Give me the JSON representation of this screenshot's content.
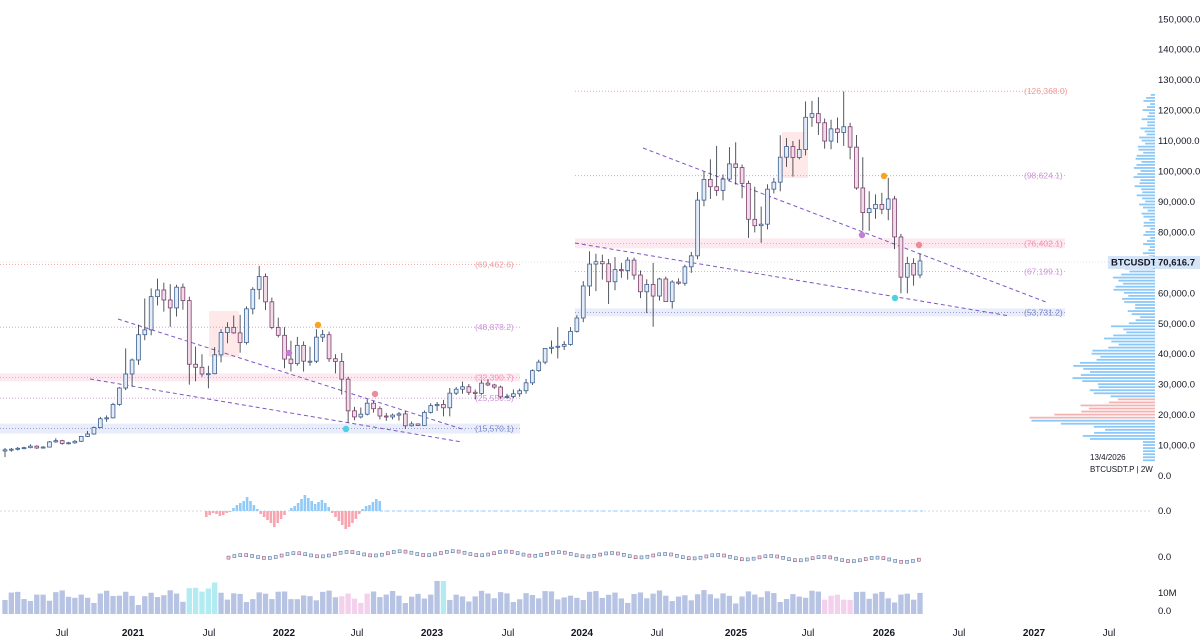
{
  "chart_data": {
    "type": "candlestick",
    "symbol": "BTCUSDT.P",
    "interval": "2W",
    "last_price": "70,616.7",
    "date_label": "13/4/2026",
    "symbol_interval_label": "BTCUSDT.P | 2W",
    "y_ticks": [
      "150,000.0",
      "140,000.0",
      "130,000.0",
      "120,000.0",
      "110,000.0",
      "100,000.0",
      "90,000.0",
      "80,000.0",
      "70,000.0",
      "60,000.0",
      "50,000.0",
      "40,000.0",
      "30,000.0",
      "20,000.0",
      "10,000.0",
      "0.0"
    ],
    "x_ticks": [
      {
        "label": "Jul",
        "year": false
      },
      {
        "label": "2021",
        "year": true
      },
      {
        "label": "Jul",
        "year": false
      },
      {
        "label": "2022",
        "year": true
      },
      {
        "label": "Jul",
        "year": false
      },
      {
        "label": "2023",
        "year": true
      },
      {
        "label": "Jul",
        "year": false
      },
      {
        "label": "2024",
        "year": true
      },
      {
        "label": "Jul",
        "year": false
      },
      {
        "label": "2025",
        "year": true
      },
      {
        "label": "Jul",
        "year": false
      },
      {
        "label": "2026",
        "year": true
      },
      {
        "label": "Jul",
        "year": false
      },
      {
        "label": "2027",
        "year": true
      },
      {
        "label": "Jul",
        "year": false
      }
    ],
    "levels": [
      {
        "label": "(126,368.0)",
        "value": 126368,
        "color": "#ef9a9a"
      },
      {
        "label": "(98,624.1)",
        "value": 98624,
        "color": "#ce93d8"
      },
      {
        "label": "(76,402.1)",
        "value": 76402,
        "color": "#f48fb1"
      },
      {
        "label": "(69,462.6)",
        "value": 69462,
        "color": "#ef9a9a"
      },
      {
        "label": "(67,199.1)",
        "value": 67199,
        "color": "#ce93d8"
      },
      {
        "label": "(53,731.2)",
        "value": 53731,
        "color": "#7986cb"
      },
      {
        "label": "(48,878.2)",
        "value": 48878,
        "color": "#ce93d8"
      },
      {
        "label": "(32,390.7)",
        "value": 32390,
        "color": "#f48fb1"
      },
      {
        "label": "(25,550.5)",
        "value": 25550,
        "color": "#ce93d8"
      },
      {
        "label": "(15,570.1)",
        "value": 15570,
        "color": "#7986cb"
      }
    ],
    "oscillator_labels": [
      "0.0",
      "0.0"
    ],
    "volume_labels": [
      "10M",
      "0.0"
    ],
    "candles": [
      [
        8200,
        9200,
        6200,
        8600
      ],
      [
        8600,
        9200,
        8000,
        8800
      ],
      [
        8800,
        9500,
        8400,
        9100
      ],
      [
        9100,
        9600,
        8800,
        9300
      ],
      [
        9300,
        10400,
        9100,
        9800
      ],
      [
        9800,
        10100,
        8900,
        9200
      ],
      [
        9200,
        9800,
        9000,
        9500
      ],
      [
        9500,
        11500,
        9400,
        11200
      ],
      [
        11200,
        12400,
        10900,
        11600
      ],
      [
        11600,
        11900,
        10300,
        10700
      ],
      [
        10700,
        11200,
        10400,
        10900
      ],
      [
        10900,
        11800,
        10600,
        11400
      ],
      [
        11400,
        13200,
        11200,
        13000
      ],
      [
        13000,
        14800,
        12800,
        13800
      ],
      [
        13800,
        16200,
        13600,
        15900
      ],
      [
        15900,
        19400,
        15700,
        18800
      ],
      [
        18800,
        19900,
        17800,
        19100
      ],
      [
        19100,
        24000,
        18900,
        23500
      ],
      [
        23500,
        29200,
        23100,
        28900
      ],
      [
        28900,
        41900,
        28200,
        33500
      ],
      [
        33500,
        38600,
        29400,
        38100
      ],
      [
        38100,
        49700,
        36500,
        46400
      ],
      [
        46400,
        58300,
        44600,
        48000
      ],
      [
        48000,
        61600,
        46200,
        58900
      ],
      [
        58900,
        64800,
        56000,
        61100
      ],
      [
        61100,
        63500,
        54000,
        57800
      ],
      [
        57800,
        63000,
        49000,
        55200
      ],
      [
        55200,
        62800,
        52400,
        62000
      ],
      [
        62000,
        63200,
        54600,
        57600
      ],
      [
        57600,
        58900,
        30000,
        36700
      ],
      [
        36700,
        42500,
        31100,
        35700
      ],
      [
        35700,
        40000,
        32600,
        33500
      ],
      [
        33500,
        36200,
        28800,
        33600
      ],
      [
        33600,
        42300,
        33400,
        39800
      ],
      [
        39800,
        48200,
        37300,
        47100
      ],
      [
        47100,
        50500,
        43600,
        48800
      ],
      [
        48800,
        52700,
        46700,
        47000
      ],
      [
        47000,
        52900,
        40500,
        43800
      ],
      [
        43800,
        55700,
        43200,
        54900
      ],
      [
        54900,
        62000,
        53100,
        61300
      ],
      [
        61300,
        69000,
        58000,
        65500
      ],
      [
        65500,
        66500,
        54500,
        57200
      ],
      [
        57200,
        58600,
        48200,
        48800
      ],
      [
        48800,
        52000,
        45500,
        46200
      ],
      [
        46200,
        48900,
        35400,
        38400
      ],
      [
        38400,
        44400,
        34300,
        36900
      ],
      [
        36900,
        45700,
        36200,
        42900
      ],
      [
        42900,
        44200,
        34300,
        37700
      ],
      [
        37700,
        42500,
        36200,
        37700
      ],
      [
        37700,
        48200,
        37100,
        45600
      ],
      [
        45600,
        48000,
        44000,
        46400
      ],
      [
        46400,
        47400,
        37500,
        38500
      ],
      [
        38500,
        40000,
        33700,
        37600
      ],
      [
        37600,
        40400,
        26700,
        31800
      ],
      [
        31800,
        32600,
        17500,
        21400
      ],
      [
        21400,
        22700,
        18300,
        19400
      ],
      [
        19400,
        22500,
        18900,
        20300
      ],
      [
        20300,
        25200,
        19900,
        23900
      ],
      [
        23900,
        24600,
        20800,
        22100
      ],
      [
        22100,
        22900,
        18600,
        19700
      ],
      [
        19700,
        20700,
        18100,
        19400
      ],
      [
        19400,
        20500,
        18600,
        20000
      ],
      [
        20000,
        21000,
        18200,
        20400
      ],
      [
        20400,
        21400,
        15500,
        16500
      ],
      [
        16500,
        17900,
        16200,
        17100
      ],
      [
        17100,
        17300,
        16400,
        16600
      ],
      [
        16600,
        21500,
        16500,
        20900
      ],
      [
        20900,
        23900,
        20500,
        23100
      ],
      [
        23100,
        24300,
        21400,
        23500
      ],
      [
        23500,
        25000,
        19600,
        22400
      ],
      [
        22400,
        28900,
        19600,
        27200
      ],
      [
        27200,
        29200,
        26600,
        28500
      ],
      [
        28500,
        31000,
        27000,
        29300
      ],
      [
        29300,
        30200,
        26600,
        27500
      ],
      [
        27500,
        28400,
        25200,
        27100
      ],
      [
        27100,
        31400,
        26700,
        30500
      ],
      [
        30500,
        31800,
        29500,
        29900
      ],
      [
        29900,
        30300,
        28600,
        29200
      ],
      [
        29200,
        29700,
        25400,
        26000
      ],
      [
        26000,
        27000,
        25400,
        26100
      ],
      [
        26100,
        28400,
        25600,
        27000
      ],
      [
        27000,
        28700,
        26000,
        28000
      ],
      [
        28000,
        31900,
        27000,
        30600
      ],
      [
        30600,
        35000,
        29900,
        34600
      ],
      [
        34600,
        38200,
        34200,
        37400
      ],
      [
        37400,
        42000,
        36700,
        41900
      ],
      [
        41900,
        44500,
        40200,
        42300
      ],
      [
        42300,
        48900,
        38600,
        42600
      ],
      [
        42600,
        44300,
        41400,
        43200
      ],
      [
        43200,
        48900,
        42800,
        47500
      ],
      [
        47500,
        52800,
        47100,
        51900
      ],
      [
        51900,
        64000,
        50500,
        62400
      ],
      [
        62400,
        73800,
        59100,
        69600
      ],
      [
        69600,
        73000,
        60700,
        70400
      ],
      [
        70400,
        72700,
        64500,
        69700
      ],
      [
        69700,
        71300,
        56500,
        63800
      ],
      [
        63800,
        71900,
        61000,
        67800
      ],
      [
        67800,
        70000,
        65100,
        67500
      ],
      [
        67500,
        71900,
        64500,
        70900
      ],
      [
        70900,
        71700,
        64500,
        66000
      ],
      [
        66000,
        67500,
        58400,
        60500
      ],
      [
        60500,
        64600,
        53500,
        62900
      ],
      [
        62900,
        70000,
        49000,
        59100
      ],
      [
        59100,
        65100,
        57600,
        64700
      ],
      [
        64700,
        65500,
        57200,
        57300
      ],
      [
        57300,
        64300,
        55000,
        63700
      ],
      [
        63700,
        64900,
        62800,
        63300
      ],
      [
        63300,
        69400,
        62500,
        68700
      ],
      [
        68700,
        73600,
        66700,
        72300
      ],
      [
        72300,
        93300,
        71200,
        90600
      ],
      [
        90600,
        99900,
        88600,
        97400
      ],
      [
        97400,
        104000,
        91000,
        95000
      ],
      [
        95000,
        108400,
        92000,
        93800
      ],
      [
        93800,
        99000,
        90500,
        97500
      ],
      [
        97500,
        108000,
        97000,
        102500
      ],
      [
        102500,
        109600,
        95700,
        101300
      ],
      [
        101300,
        102300,
        91200,
        96100
      ],
      [
        96100,
        97000,
        78200,
        84300
      ],
      [
        84300,
        95000,
        80000,
        82200
      ],
      [
        82200,
        88500,
        76600,
        82700
      ],
      [
        82700,
        95800,
        81000,
        94200
      ],
      [
        94200,
        97900,
        92800,
        96500
      ],
      [
        96500,
        111900,
        93500,
        104700
      ],
      [
        104700,
        111000,
        101500,
        108200
      ],
      [
        108200,
        110000,
        98300,
        104600
      ],
      [
        104600,
        110500,
        104000,
        107200
      ],
      [
        107200,
        123000,
        105300,
        117800
      ],
      [
        117800,
        123200,
        114700,
        119000
      ],
      [
        119000,
        124400,
        112000,
        116000
      ],
      [
        116000,
        117400,
        107500,
        110000
      ],
      [
        110000,
        117000,
        107300,
        114000
      ],
      [
        114000,
        117700,
        109400,
        112800
      ],
      [
        112800,
        126300,
        108400,
        114700
      ],
      [
        114700,
        116000,
        104000,
        108000
      ],
      [
        108000,
        112000,
        94000,
        94600
      ],
      [
        94600,
        104700,
        80600,
        86500
      ],
      [
        86500,
        93500,
        80500,
        87800
      ],
      [
        87800,
        92500,
        84500,
        89200
      ],
      [
        89200,
        93000,
        86000,
        87600
      ],
      [
        87600,
        97900,
        84000,
        91000
      ],
      [
        91000,
        92000,
        74500,
        78500
      ],
      [
        78500,
        79500,
        60000,
        65300
      ],
      [
        65300,
        72000,
        60000,
        69800
      ],
      [
        69800,
        71500,
        62500,
        66000
      ],
      [
        66000,
        73000,
        65000,
        70616
      ]
    ]
  }
}
